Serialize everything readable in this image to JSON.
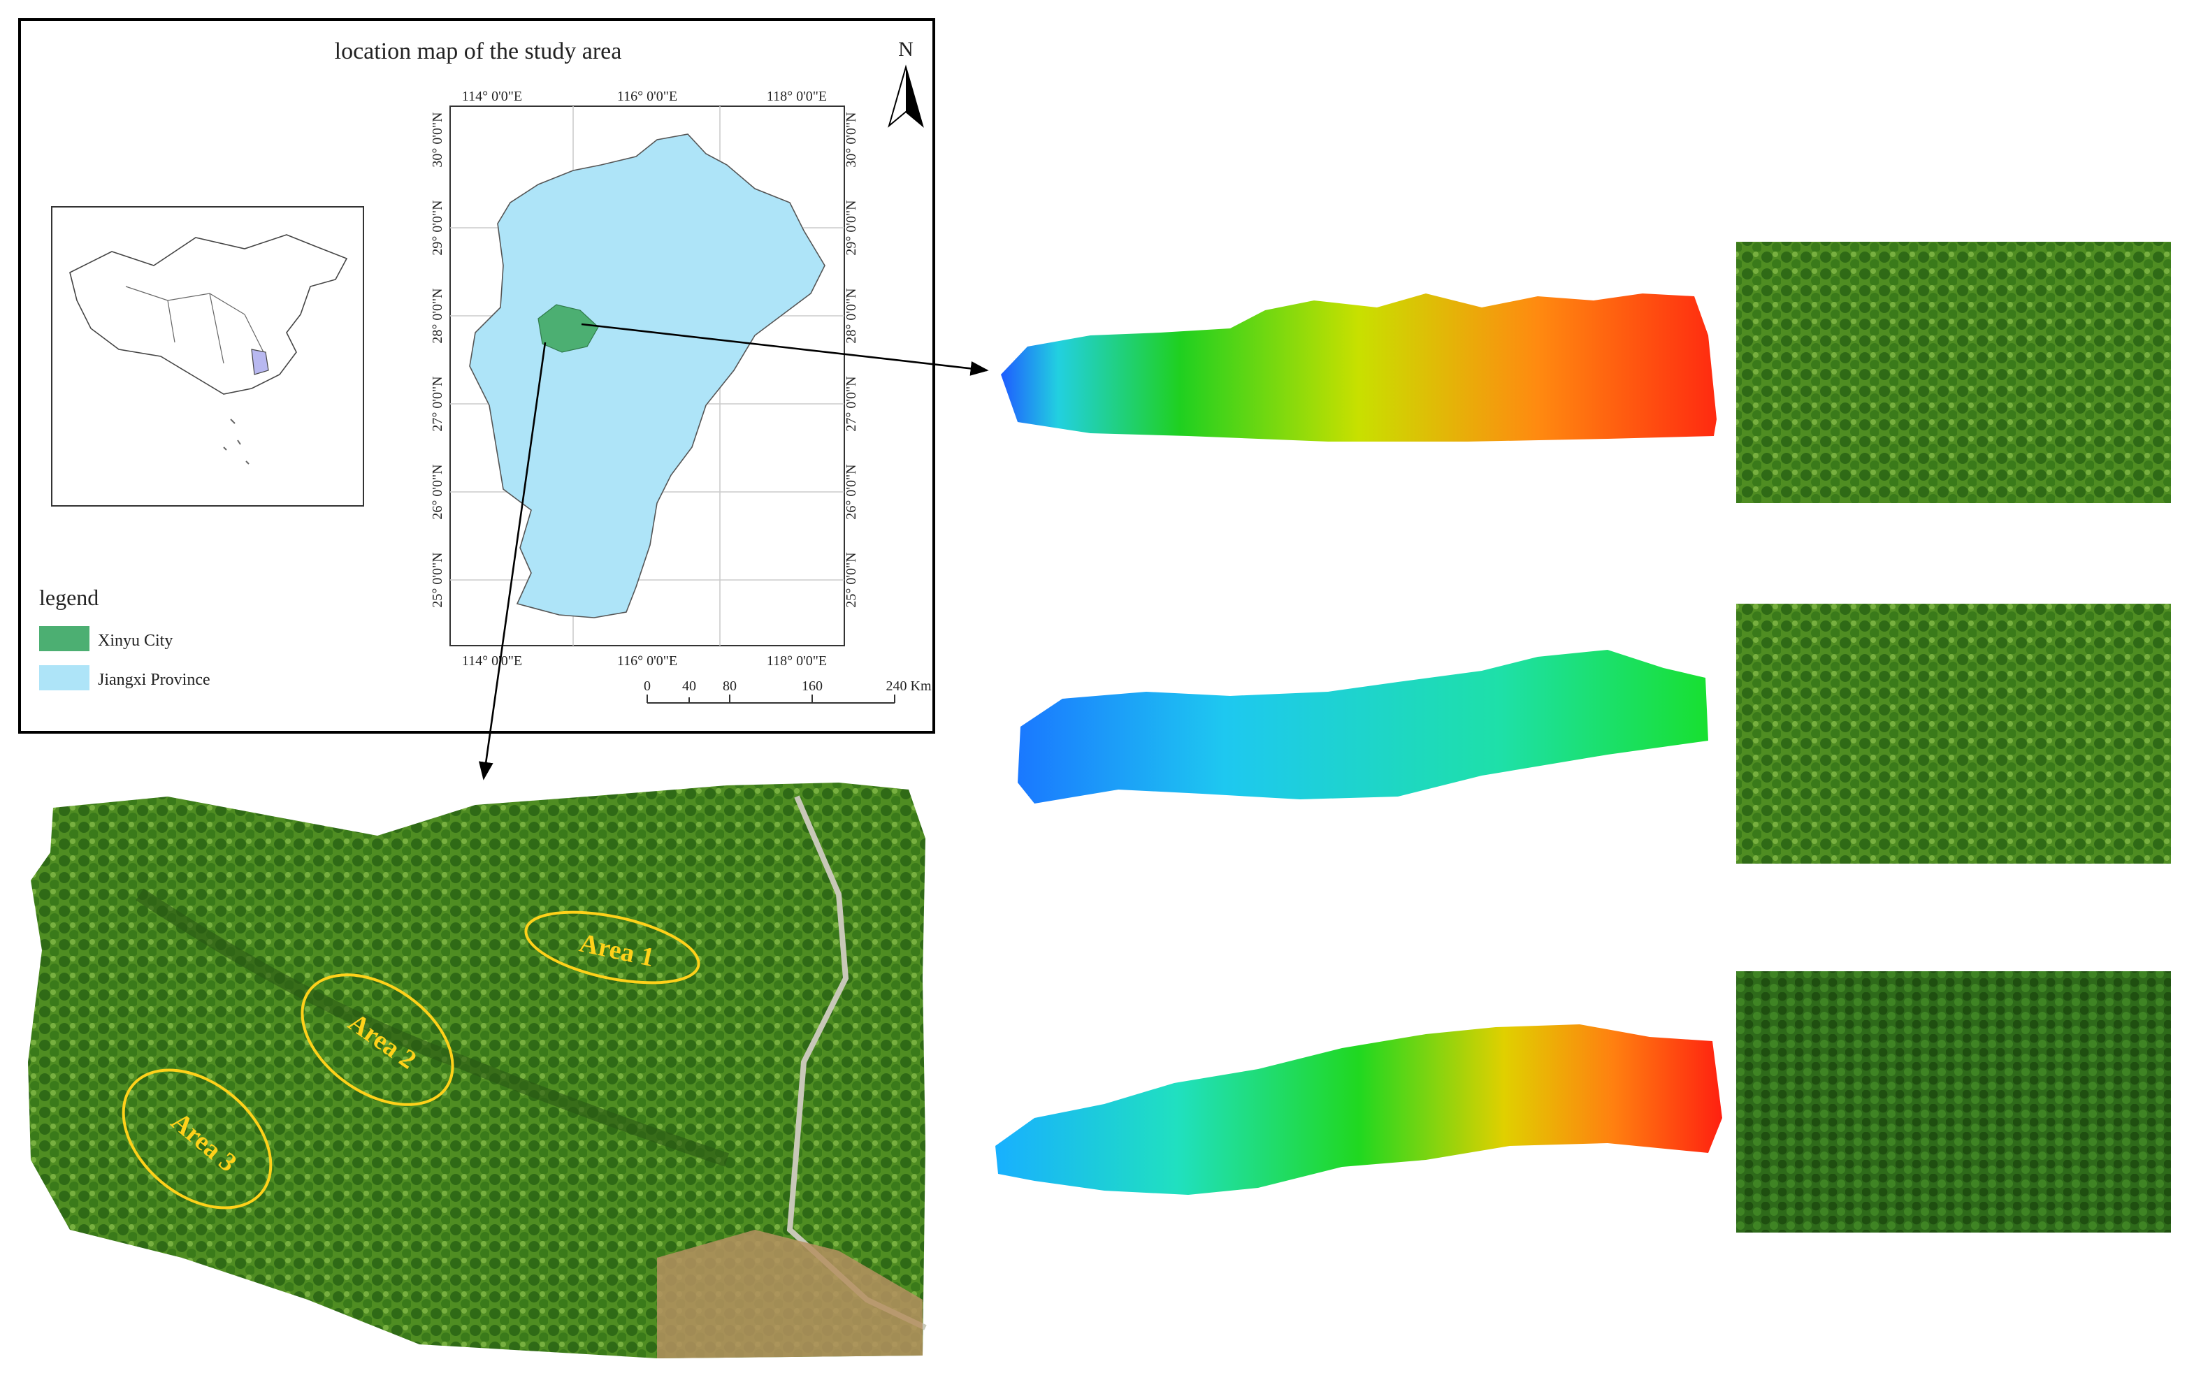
{
  "title": "location map of the study area",
  "north": "N",
  "lon_labels": [
    "114° 0'0\"E",
    "116° 0'0\"E",
    "118° 0'0\"E"
  ],
  "lat_labels": [
    "30° 0'0\"N",
    "29° 0'0\"N",
    "28° 0'0\"N",
    "27° 0'0\"N",
    "26° 0'0\"N",
    "25° 0'0\"N"
  ],
  "legend": {
    "title": "legend",
    "items": [
      "Xinyu City",
      "Jiangxi Province"
    ]
  },
  "scale": {
    "labels": [
      "0",
      "40",
      "80",
      "160",
      "240 Km"
    ]
  },
  "areas": [
    "Area 1",
    "Area 2",
    "Area 3"
  ]
}
